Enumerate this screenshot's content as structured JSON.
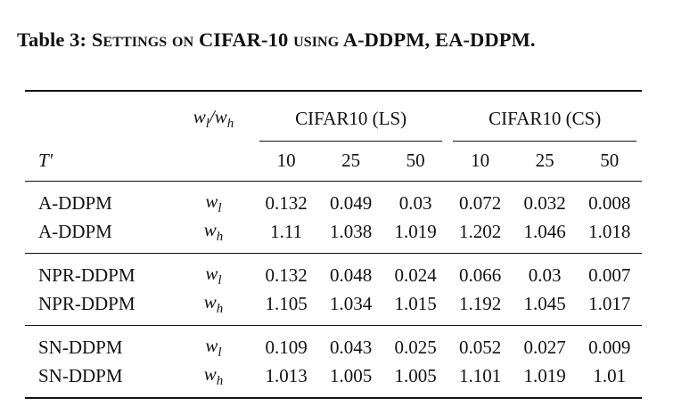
{
  "caption": {
    "prefix": "Table 3: ",
    "sc1": "Settings on",
    "mid1": " CIFAR-10 ",
    "sc2": "using",
    "mid2": " A-DDPM, EA-DDPM."
  },
  "header": {
    "wlwh_label": "wl/wh",
    "group_ls": "CIFAR10 (LS)",
    "group_cs": "CIFAR10 (CS)",
    "t_prime": "T′",
    "cols": [
      "10",
      "25",
      "50",
      "10",
      "25",
      "50"
    ]
  },
  "rows": [
    {
      "method": "A-DDPM",
      "w": "w",
      "sub": "l",
      "values": [
        "0.132",
        "0.049",
        "0.03",
        "0.072",
        "0.032",
        "0.008"
      ]
    },
    {
      "method": "A-DDPM",
      "w": "w",
      "sub": "h",
      "values": [
        "1.11",
        "1.038",
        "1.019",
        "1.202",
        "1.046",
        "1.018"
      ]
    },
    {
      "method": "NPR-DDPM",
      "w": "w",
      "sub": "l",
      "values": [
        "0.132",
        "0.048",
        "0.024",
        "0.066",
        "0.03",
        "0.007"
      ]
    },
    {
      "method": "NPR-DDPM",
      "w": "w",
      "sub": "h",
      "values": [
        "1.105",
        "1.034",
        "1.015",
        "1.192",
        "1.045",
        "1.017"
      ]
    },
    {
      "method": "SN-DDPM",
      "w": "w",
      "sub": "l",
      "values": [
        "0.109",
        "0.043",
        "0.025",
        "0.052",
        "0.027",
        "0.009"
      ]
    },
    {
      "method": "SN-DDPM",
      "w": "w",
      "sub": "h",
      "values": [
        "1.013",
        "1.005",
        "1.005",
        "1.101",
        "1.019",
        "1.01"
      ]
    }
  ]
}
